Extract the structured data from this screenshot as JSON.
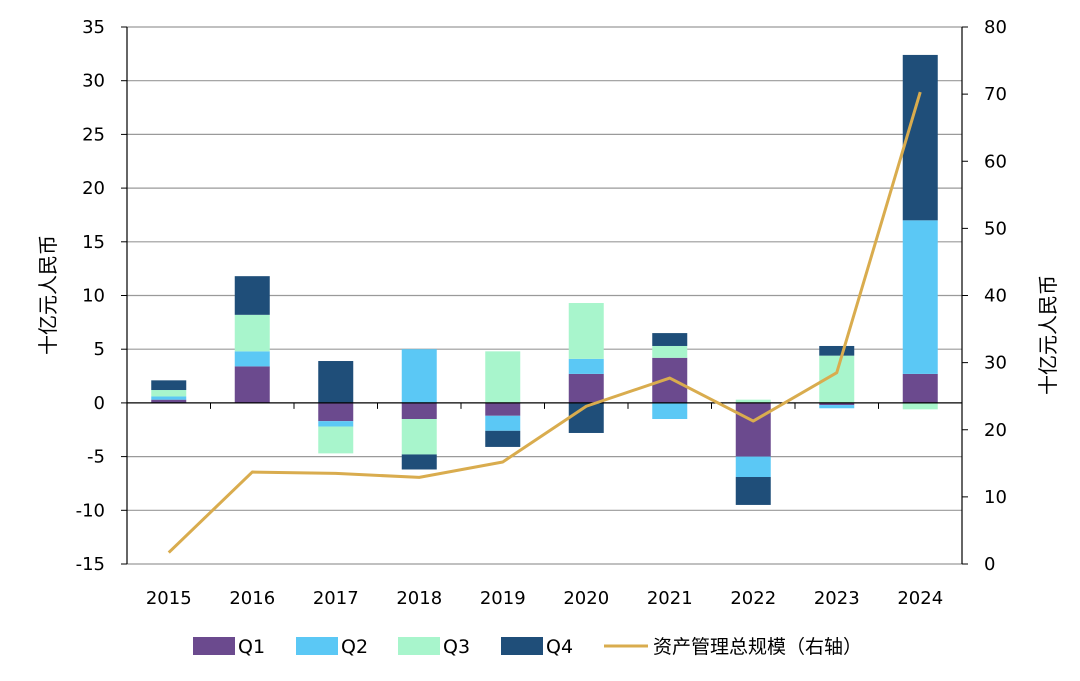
{
  "chart_data": {
    "type": "bar",
    "stacked": true,
    "categories": [
      "2015",
      "2016",
      "2017",
      "2018",
      "2019",
      "2020",
      "2021",
      "2022",
      "2023",
      "2024"
    ],
    "series": [
      {
        "name": "Q1",
        "color": "#6B4A8E",
        "values": [
          0.3,
          3.4,
          -1.7,
          -1.5,
          -1.2,
          2.7,
          4.2,
          -5.0,
          -0.2,
          2.7
        ]
      },
      {
        "name": "Q2",
        "color": "#5BC8F5",
        "values": [
          0.3,
          1.4,
          -0.5,
          5.0,
          -1.4,
          1.4,
          -1.5,
          -1.9,
          -0.3,
          14.3
        ]
      },
      {
        "name": "Q3",
        "color": "#A8F5CC",
        "values": [
          0.6,
          3.4,
          -2.5,
          -3.3,
          4.8,
          5.2,
          1.1,
          0.3,
          4.4,
          -0.6
        ]
      },
      {
        "name": "Q4",
        "color": "#1F4E79",
        "values": [
          0.9,
          3.6,
          3.9,
          -1.4,
          -1.5,
          -2.8,
          1.2,
          -2.6,
          0.9,
          15.4
        ]
      }
    ],
    "line_series": {
      "name": "资产管理总规模（右轴）",
      "color": "#D9AC4E",
      "axis": "right",
      "values": [
        1.7,
        13.7,
        13.5,
        12.9,
        15.2,
        23.5,
        27.7,
        21.3,
        28.5,
        70.3
      ]
    },
    "y_left": {
      "label": "十亿元人民币",
      "min": -15,
      "max": 35,
      "ticks": [
        "35",
        "30",
        "25",
        "20",
        "15",
        "10",
        "5",
        "0",
        "-5",
        "-10",
        "-15"
      ]
    },
    "y_right": {
      "label": "十亿元人民币",
      "min": 0,
      "max": 80,
      "ticks": [
        "80",
        "70",
        "60",
        "50",
        "40",
        "30",
        "20",
        "10",
        "0"
      ]
    },
    "grid": true,
    "legend": "bottom"
  }
}
